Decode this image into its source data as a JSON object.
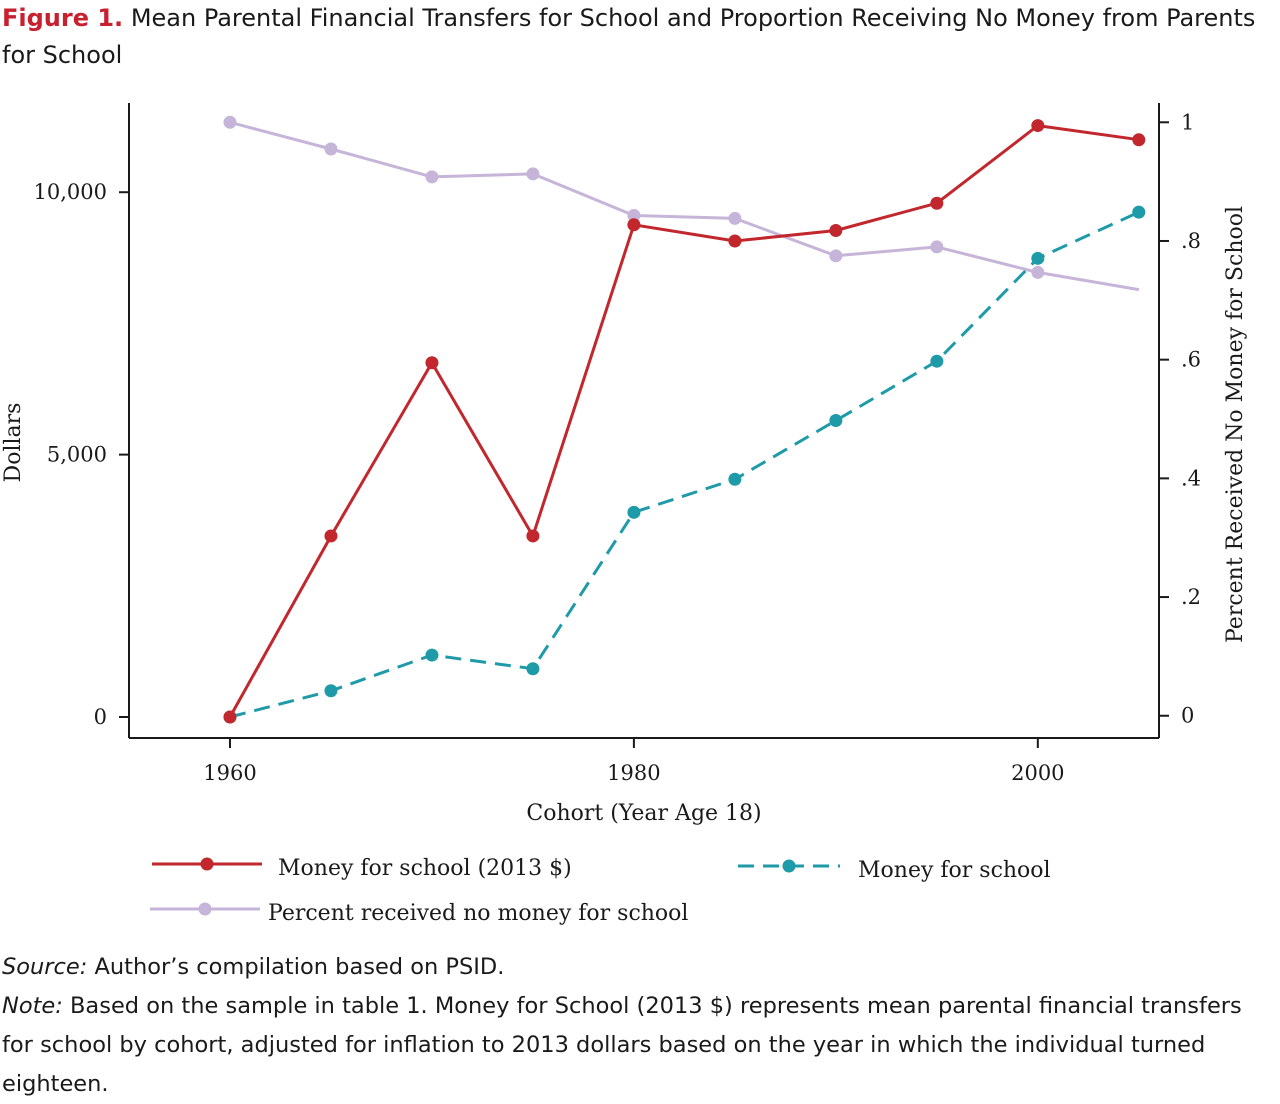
{
  "figure": {
    "label": "Figure 1.",
    "title": "Mean Parental Financial Transfers for School and Proportion Receiving No Money from Parents for School"
  },
  "source": {
    "label": "Source:",
    "text": "Author’s compilation based on PSID."
  },
  "note": {
    "label": "Note:",
    "text": "Based on the sample in table 1. Money for School (2013 $) represents mean parental financial transfers for school by cohort, adjusted for inflation to 2013 dollars based on the year in which the individual turned eighteen."
  },
  "chart_data": {
    "type": "line",
    "xlabel": "Cohort (Year Age 18)",
    "ylabel": "Dollars",
    "y2label": "Percent Received No Money for School",
    "xlim": [
      1955,
      2006
    ],
    "ylim": [
      -400,
      11700
    ],
    "y2lim": [
      -0.0375,
      1.0325
    ],
    "xticks": [
      1960,
      1980,
      2000
    ],
    "xtick_labels": [
      "1960",
      "1980",
      "2000"
    ],
    "yticks": [
      0,
      5000,
      10000
    ],
    "ytick_labels": [
      "0",
      "5,000",
      "10,000"
    ],
    "y2ticks": [
      0,
      0.2,
      0.4,
      0.6,
      0.8,
      1
    ],
    "y2tick_labels": [
      "0",
      ".2",
      ".4",
      ".6",
      ".8",
      "1"
    ],
    "x": [
      1960,
      1965,
      1970,
      1975,
      1980,
      1985,
      1990,
      1995,
      2000,
      2005
    ],
    "series": [
      {
        "name": "Money for school (2013 $)",
        "axis": "left",
        "color": "#c1272d",
        "dash": "solid",
        "values": [
          0,
          3450,
          6750,
          3450,
          9380,
          9070,
          9270,
          9790,
          11270,
          11000
        ]
      },
      {
        "name": "Money for school",
        "axis": "left",
        "color": "#1e9aa8",
        "dash": "dashed",
        "values": [
          0,
          500,
          1180,
          920,
          3900,
          4530,
          5650,
          6780,
          8740,
          9620
        ]
      },
      {
        "name": "Percent received no money for school",
        "axis": "right",
        "color": "#c6b5d8",
        "dash": "solid",
        "values": [
          1.0,
          0.955,
          0.908,
          0.913,
          0.843,
          0.838,
          0.775,
          0.79,
          0.747,
          0.718
        ],
        "last_point_marker": false
      }
    ],
    "legend": {
      "placement": "bottom",
      "order": [
        "Money for school (2013 $)",
        "Money for school",
        "Percent received no money for school"
      ]
    },
    "grid": false
  }
}
